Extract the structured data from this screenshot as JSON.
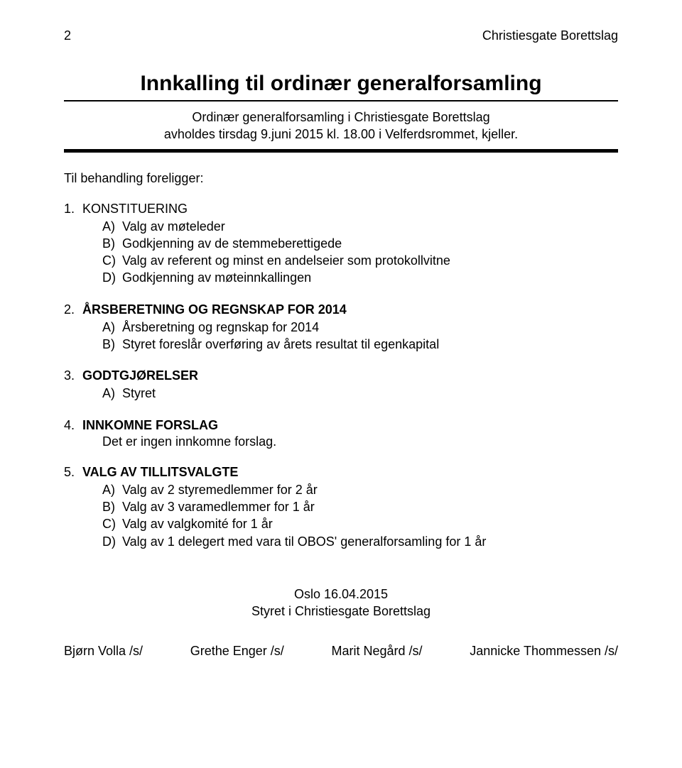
{
  "header": {
    "page_no": "2",
    "org": "Christiesgate Borettslag"
  },
  "title": "Innkalling til ordinær generalforsamling",
  "subtitle_line1": "Ordinær generalforsamling i Christiesgate Borettslag",
  "subtitle_line2": "avholdes tirsdag 9.juni  2015 kl. 18.00 i Velferdsrommet, kjeller.",
  "intro": "Til behandling foreligger:",
  "items": [
    {
      "num": "1.",
      "title": "KONSTITUERING",
      "subs": [
        {
          "l": "A)",
          "t": "Valg av møteleder"
        },
        {
          "l": "B)",
          "t": "Godkjenning av de stemmeberettigede"
        },
        {
          "l": "C)",
          "t": "Valg av referent og minst en andelseier som protokollvitne"
        },
        {
          "l": "D)",
          "t": "Godkjenning av møteinnkallingen"
        }
      ]
    },
    {
      "num": "2.",
      "title": "ÅRSBERETNING OG REGNSKAP FOR 2014",
      "title_bold": true,
      "subs": [
        {
          "l": "A)",
          "t": "Årsberetning og regnskap for 2014"
        },
        {
          "l": "B)",
          "t": "Styret foreslår overføring av årets resultat til egenkapital"
        }
      ]
    },
    {
      "num": "3.",
      "title": "GODTGJØRELSER",
      "title_bold": true,
      "subs": [
        {
          "l": "A)",
          "t": "Styret"
        }
      ]
    },
    {
      "num": "4.",
      "title": "INNKOMNE FORSLAG",
      "title_bold": true,
      "body": "Det er ingen innkomne forslag."
    },
    {
      "num": "5.",
      "title": "VALG AV TILLITSVALGTE",
      "title_bold": true,
      "subs": [
        {
          "l": "A)",
          "t": "Valg av 2 styremedlemmer for 2 år"
        },
        {
          "l": "B)",
          "t": "Valg av 3 varamedlemmer for 1 år"
        },
        {
          "l": "C)",
          "t": "Valg av valgkomité for 1 år"
        },
        {
          "l": "D)",
          "t": "Valg av 1 delegert med vara til OBOS' generalforsamling for 1 år"
        }
      ]
    }
  ],
  "footer": {
    "date": "Oslo 16.04.2015",
    "board": "Styret i Christiesgate Borettslag"
  },
  "signatures": [
    "Bjørn Volla /s/",
    "Grethe Enger /s/",
    "Marit Negård /s/",
    "Jannicke Thommessen /s/"
  ]
}
